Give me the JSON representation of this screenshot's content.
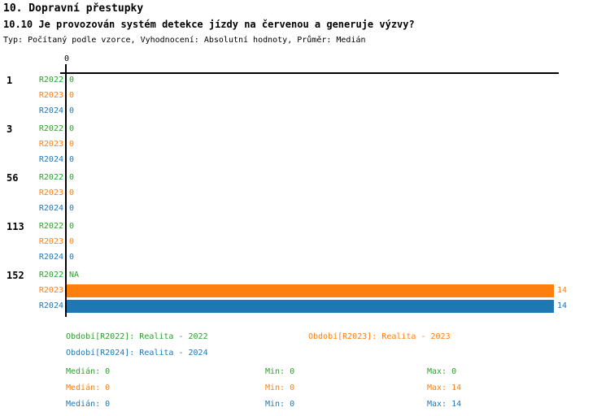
{
  "header": {
    "title": "10. Dopravní přestupky",
    "subtitle": "10.10 Je provozován systém detekce jízdy na červenou a generuje výzvy?",
    "meta": "Typ: Počítaný podle vzorce, Vyhodnocení: Absolutní hodnoty, Průměr: Medián"
  },
  "colors": {
    "r2022": "#2ca02c",
    "r2023": "#ff7f0e",
    "r2024": "#1f77b4",
    "axis": "#000000"
  },
  "chart_data": {
    "type": "bar",
    "orientation": "horizontal",
    "title": "10.10 Je provozován systém detekce jízdy na červenou a generuje výzvy?",
    "categories": [
      "1",
      "3",
      "56",
      "113",
      "152"
    ],
    "series": [
      {
        "name": "R2022",
        "color": "#2ca02c",
        "values": [
          0,
          0,
          0,
          0,
          null
        ],
        "labels": [
          "0",
          "0",
          "0",
          "0",
          "NA"
        ]
      },
      {
        "name": "R2023",
        "color": "#ff7f0e",
        "values": [
          0,
          0,
          0,
          0,
          14
        ],
        "labels": [
          "0",
          "0",
          "0",
          "0",
          "14"
        ]
      },
      {
        "name": "R2024",
        "color": "#1f77b4",
        "values": [
          0,
          0,
          0,
          0,
          14
        ],
        "labels": [
          "0",
          "0",
          "0",
          "0",
          "14"
        ]
      }
    ],
    "xlim": [
      0,
      14
    ],
    "axis_tick_label": "0",
    "grid": false,
    "legend_position": "bottom"
  },
  "legend": {
    "r2022": "Období[R2022]: Realita - 2022",
    "r2023": "Období[R2023]: Realita - 2023",
    "r2024": "Období[R2024]: Realita - 2024"
  },
  "stats": {
    "r2022": {
      "median": "Medián: 0",
      "min": "Min: 0",
      "max": "Max: 0"
    },
    "r2023": {
      "median": "Medián: 0",
      "min": "Min: 0",
      "max": "Max: 14"
    },
    "r2024": {
      "median": "Medián: 0",
      "min": "Min: 0",
      "max": "Max: 14"
    }
  }
}
